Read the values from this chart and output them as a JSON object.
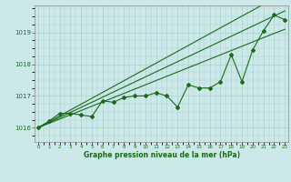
{
  "x": [
    0,
    1,
    2,
    3,
    4,
    5,
    6,
    7,
    8,
    9,
    10,
    11,
    12,
    13,
    14,
    15,
    16,
    17,
    18,
    19,
    20,
    21,
    22,
    23
  ],
  "main_line": [
    1016.0,
    1016.2,
    1016.45,
    1016.45,
    1016.4,
    1016.35,
    1016.85,
    1016.8,
    1016.95,
    1017.0,
    1017.0,
    1017.1,
    1017.0,
    1016.65,
    1017.35,
    1017.25,
    1017.25,
    1017.45,
    1018.3,
    1017.45,
    1018.45,
    1019.05,
    1019.55,
    1019.4
  ],
  "trend1": [
    1016.0,
    1016.135,
    1016.27,
    1016.405,
    1016.54,
    1016.675,
    1016.81,
    1016.945,
    1017.08,
    1017.215,
    1017.35,
    1017.485,
    1017.62,
    1017.755,
    1017.89,
    1018.025,
    1018.16,
    1018.295,
    1018.43,
    1018.565,
    1018.7,
    1018.835,
    1018.97,
    1019.1
  ],
  "trend2": [
    1016.0,
    1016.16,
    1016.32,
    1016.48,
    1016.64,
    1016.8,
    1016.96,
    1017.12,
    1017.28,
    1017.44,
    1017.6,
    1017.76,
    1017.92,
    1018.08,
    1018.24,
    1018.4,
    1018.56,
    1018.72,
    1018.88,
    1019.04,
    1019.2,
    1019.36,
    1019.52,
    1019.68
  ],
  "trend3": [
    1016.0,
    1016.185,
    1016.37,
    1016.555,
    1016.74,
    1016.925,
    1017.11,
    1017.295,
    1017.48,
    1017.665,
    1017.85,
    1018.035,
    1018.22,
    1018.405,
    1018.59,
    1018.775,
    1018.96,
    1019.145,
    1019.33,
    1019.515,
    1019.7,
    1019.885,
    1020.07,
    1020.255
  ],
  "line_color": "#1a6b1a",
  "bg_color": "#cce8e8",
  "grid_color": "#aad0d0",
  "xlabel": "Graphe pression niveau de la mer (hPa)",
  "yticks": [
    1016,
    1017,
    1018,
    1019
  ],
  "ylim": [
    1015.55,
    1019.85
  ],
  "xlim": [
    -0.3,
    23.3
  ]
}
